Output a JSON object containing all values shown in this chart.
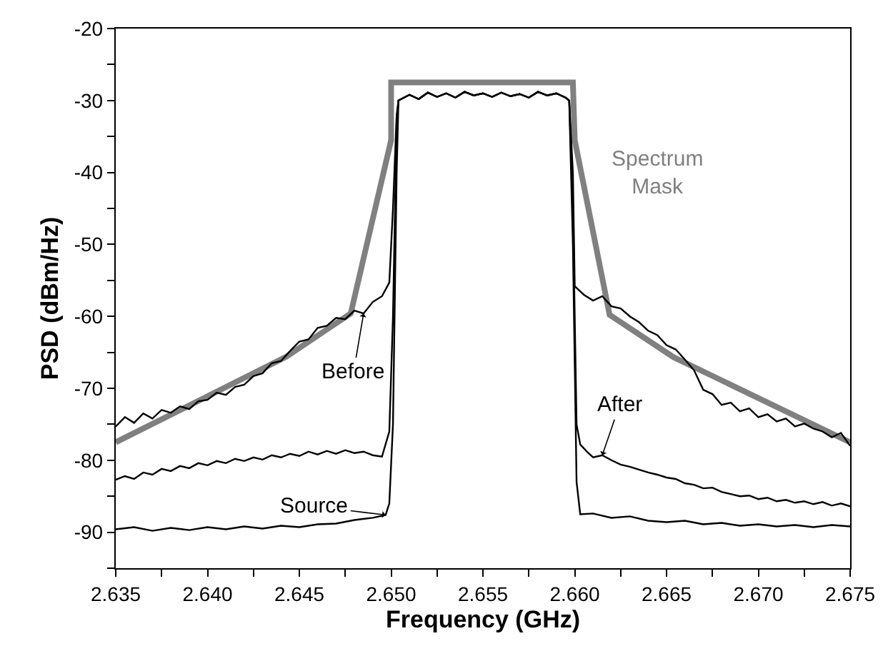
{
  "chart_data": {
    "type": "line",
    "xlabel": "Frequency (GHz)",
    "ylabel": "PSD (dBm/Hz)",
    "xlim": [
      2.635,
      2.675
    ],
    "ylim": [
      -95,
      -20
    ],
    "xticks": [
      {
        "value": 2.635,
        "label": "2.635"
      },
      {
        "value": 2.6375,
        "label": null
      },
      {
        "value": 2.64,
        "label": "2.640"
      },
      {
        "value": 2.6425,
        "label": null
      },
      {
        "value": 2.645,
        "label": "2.645"
      },
      {
        "value": 2.6475,
        "label": null
      },
      {
        "value": 2.65,
        "label": "2.650"
      },
      {
        "value": 2.6525,
        "label": null
      },
      {
        "value": 2.655,
        "label": "2.655"
      },
      {
        "value": 2.6575,
        "label": null
      },
      {
        "value": 2.66,
        "label": "2.660"
      },
      {
        "value": 2.6625,
        "label": null
      },
      {
        "value": 2.665,
        "label": "2.665"
      },
      {
        "value": 2.6675,
        "label": null
      },
      {
        "value": 2.67,
        "label": "2.670"
      },
      {
        "value": 2.6725,
        "label": null
      },
      {
        "value": 2.675,
        "label": "2.675"
      }
    ],
    "yticks": [
      {
        "value": -95,
        "label": null
      },
      -90,
      {
        "value": -85,
        "label": null
      },
      -80,
      {
        "value": -75,
        "label": null
      },
      -70,
      {
        "value": -65,
        "label": null
      },
      -60,
      {
        "value": -55,
        "label": null
      },
      -50,
      {
        "value": -45,
        "label": null
      },
      -40,
      {
        "value": -35,
        "label": null
      },
      -30,
      {
        "value": -25,
        "label": null
      },
      -20
    ],
    "annotations": [
      {
        "text": "Before",
        "x": 2.6485,
        "y": -59.6
      },
      {
        "text": "After",
        "x": 2.6615,
        "y": -79.3
      },
      {
        "text": "Source",
        "x": 2.6497,
        "y": -87.6
      }
    ],
    "legend": false,
    "marker": "none",
    "line_style": "solid",
    "series": [
      {
        "color": "#000000",
        "x": [
          2.635,
          2.6355,
          2.636,
          2.6365,
          2.637,
          2.6375,
          2.638,
          2.6385,
          2.639,
          2.6395,
          2.64,
          2.6405,
          2.641,
          2.6415,
          2.642,
          2.6425,
          2.643,
          2.6435,
          2.644,
          2.6445,
          2.645,
          2.6455,
          2.646,
          2.6465,
          2.647,
          2.6475,
          2.648,
          2.6485,
          2.649,
          2.6495,
          2.6499,
          2.6501,
          2.6503,
          2.6504,
          2.651,
          2.6515,
          2.652,
          2.6525,
          2.653,
          2.6535,
          2.654,
          2.6545,
          2.655,
          2.6555,
          2.656,
          2.6565,
          2.657,
          2.6575,
          2.658,
          2.6585,
          2.659,
          2.6595,
          2.6597,
          2.6599,
          2.66,
          2.6605,
          2.661,
          2.6615,
          2.662,
          2.6625,
          2.663,
          2.6635,
          2.664,
          2.6645,
          2.665,
          2.6655,
          2.666,
          2.6665,
          2.667,
          2.6675,
          2.668,
          2.6685,
          2.669,
          2.6695,
          2.67,
          2.6705,
          2.671,
          2.6715,
          2.672,
          2.6725,
          2.673,
          2.6735,
          2.674,
          2.6745,
          2.675
        ],
        "values": [
          -75.3,
          -74,
          -74.8,
          -73.5,
          -74.2,
          -73,
          -73.4,
          -72.5,
          -72.9,
          -71.8,
          -71.6,
          -70.6,
          -70.9,
          -69.8,
          -69.5,
          -68.3,
          -67.9,
          -66.5,
          -66.2,
          -64.8,
          -63.5,
          -63.2,
          -61.6,
          -61.3,
          -60.2,
          -60.4,
          -59.2,
          -59.6,
          -58,
          -57.2,
          -55.3,
          -45,
          -32,
          -30,
          -29.2,
          -29.8,
          -28.9,
          -29.5,
          -29,
          -29.6,
          -28.8,
          -29.3,
          -29,
          -29.5,
          -28.9,
          -29.4,
          -29.1,
          -29.6,
          -28.8,
          -29.3,
          -29,
          -29.6,
          -30,
          -40,
          -55.8,
          -57,
          -57.8,
          -57.2,
          -58.6,
          -58.9,
          -60,
          -60.8,
          -62,
          -62.6,
          -64,
          -64.6,
          -66,
          -67.5,
          -70.2,
          -70.8,
          -72.3,
          -72,
          -73.2,
          -72.8,
          -74,
          -73.6,
          -74.6,
          -74.2,
          -75.3,
          -74.9,
          -75.6,
          -76,
          -76.8,
          -76.2,
          -78
        ]
      },
      {
        "color": "#000000",
        "x": [
          2.635,
          2.6355,
          2.636,
          2.6365,
          2.637,
          2.6375,
          2.638,
          2.6385,
          2.639,
          2.6395,
          2.64,
          2.6405,
          2.641,
          2.6415,
          2.642,
          2.6425,
          2.643,
          2.6435,
          2.644,
          2.6445,
          2.645,
          2.6455,
          2.646,
          2.6465,
          2.647,
          2.6475,
          2.648,
          2.6485,
          2.649,
          2.6495,
          2.6499,
          2.6501,
          2.6503,
          2.6504,
          2.651,
          2.6515,
          2.652,
          2.6525,
          2.653,
          2.6535,
          2.654,
          2.6545,
          2.655,
          2.6555,
          2.656,
          2.6565,
          2.657,
          2.6575,
          2.658,
          2.6585,
          2.659,
          2.6595,
          2.6597,
          2.6599,
          2.6601,
          2.6603,
          2.6607,
          2.661,
          2.6615,
          2.662,
          2.6625,
          2.663,
          2.6635,
          2.664,
          2.6645,
          2.665,
          2.6655,
          2.666,
          2.6665,
          2.667,
          2.6675,
          2.668,
          2.6685,
          2.669,
          2.6695,
          2.67,
          2.6705,
          2.671,
          2.6715,
          2.672,
          2.6725,
          2.673,
          2.6735,
          2.674,
          2.6745,
          2.675
        ],
        "values": [
          -82.7,
          -82.2,
          -82.6,
          -81.7,
          -82,
          -81.2,
          -81.5,
          -80.8,
          -81.1,
          -80.4,
          -80.7,
          -80.1,
          -80.4,
          -79.8,
          -80.1,
          -79.6,
          -79.9,
          -79.3,
          -79.6,
          -79.1,
          -79.4,
          -78.8,
          -79.2,
          -78.7,
          -79.1,
          -78.6,
          -79,
          -78.8,
          -79.3,
          -79.5,
          -76,
          -60,
          -33,
          -30,
          -29.2,
          -29.8,
          -28.9,
          -29.5,
          -29,
          -29.6,
          -28.8,
          -29.3,
          -29,
          -29.5,
          -28.9,
          -29.4,
          -29.1,
          -29.6,
          -28.8,
          -29.3,
          -29,
          -29.6,
          -30,
          -45,
          -75,
          -77.8,
          -78.9,
          -79.6,
          -79.3,
          -80,
          -80.6,
          -80.9,
          -81.3,
          -81.7,
          -82,
          -82.4,
          -82.6,
          -83.2,
          -83.4,
          -83.9,
          -83.8,
          -84.4,
          -84.7,
          -85,
          -84.9,
          -85.4,
          -85.2,
          -85.7,
          -85.5,
          -85.9,
          -85.7,
          -86.1,
          -85.8,
          -86.3,
          -86,
          -86.4
        ]
      },
      {
        "color": "#000000",
        "x": [
          2.635,
          2.636,
          2.637,
          2.638,
          2.639,
          2.64,
          2.641,
          2.642,
          2.643,
          2.644,
          2.645,
          2.646,
          2.647,
          2.648,
          2.649,
          2.6497,
          2.6499,
          2.6501,
          2.6503,
          2.6504,
          2.651,
          2.6515,
          2.652,
          2.6525,
          2.653,
          2.6535,
          2.654,
          2.6545,
          2.655,
          2.6555,
          2.656,
          2.6565,
          2.657,
          2.6575,
          2.658,
          2.6585,
          2.659,
          2.6595,
          2.6597,
          2.6599,
          2.6601,
          2.6603,
          2.661,
          2.662,
          2.663,
          2.664,
          2.665,
          2.666,
          2.667,
          2.668,
          2.669,
          2.67,
          2.671,
          2.672,
          2.673,
          2.674,
          2.675
        ],
        "values": [
          -89.6,
          -89.3,
          -89.8,
          -89.4,
          -89.7,
          -89.3,
          -89.6,
          -89.2,
          -89.5,
          -89.1,
          -89.3,
          -88.9,
          -88.8,
          -88.3,
          -88,
          -87.6,
          -86,
          -75,
          -40,
          -30,
          -29.2,
          -29.8,
          -28.9,
          -29.5,
          -29,
          -29.6,
          -28.8,
          -29.3,
          -29,
          -29.5,
          -28.9,
          -29.4,
          -29.1,
          -29.6,
          -28.8,
          -29.3,
          -29,
          -29.6,
          -30,
          -50,
          -83,
          -87.5,
          -87.4,
          -88,
          -87.8,
          -88.4,
          -88.6,
          -88.4,
          -88.9,
          -88.7,
          -89.1,
          -88.9,
          -89.2,
          -89,
          -89.3,
          -89,
          -89.2
        ]
      },
      {
        "name": "Spectrum Mask",
        "color": "#808080",
        "x": [
          2.635,
          2.6443,
          2.6478,
          2.65,
          2.65,
          2.6599,
          2.66,
          2.6619,
          2.6654,
          2.675
        ],
        "values": [
          -77.5,
          -65.6,
          -59.6,
          -35.5,
          -27.5,
          -27.5,
          -35.5,
          -59.8,
          -65.7,
          -77.5
        ]
      }
    ]
  }
}
